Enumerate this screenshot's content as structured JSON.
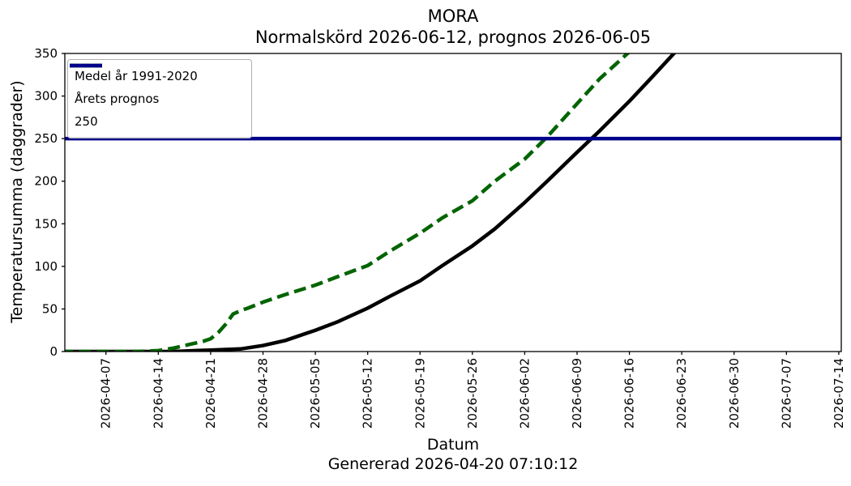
{
  "chart_data": {
    "type": "line",
    "title_lines": [
      "MORA",
      "Normalskörd 2026-06-12, prognos 2026-06-05"
    ],
    "xlabel": "Datum",
    "ylabel": "Temperatursumma (daggrader)",
    "footnote": "Genererad 2026-04-20 07:10:12",
    "ylim": [
      0,
      350
    ],
    "yticks": [
      0,
      50,
      100,
      150,
      200,
      250,
      300,
      350
    ],
    "xlim": [
      "2026-04-01T12:00:00Z",
      "2026-07-14T08:00:00Z"
    ],
    "xticks": [
      "2026-04-07",
      "2026-04-14",
      "2026-04-21",
      "2026-04-28",
      "2026-05-05",
      "2026-05-12",
      "2026-05-19",
      "2026-05-26",
      "2026-06-02",
      "2026-06-09",
      "2026-06-16",
      "2026-06-23",
      "2026-06-30",
      "2026-07-07",
      "2026-07-14"
    ],
    "grid": false,
    "legend_position": "upper-left",
    "axis_color": "#000000",
    "series": [
      {
        "name": "Medel år 1991-2020",
        "color": "#000000",
        "style": "solid",
        "points": [
          [
            "2026-04-01",
            0
          ],
          [
            "2026-04-10",
            0
          ],
          [
            "2026-04-16",
            0
          ],
          [
            "2026-04-19",
            1
          ],
          [
            "2026-04-22",
            2
          ],
          [
            "2026-04-25",
            3
          ],
          [
            "2026-04-28",
            7
          ],
          [
            "2026-05-01",
            13
          ],
          [
            "2026-05-05",
            25
          ],
          [
            "2026-05-08",
            35
          ],
          [
            "2026-05-12",
            51
          ],
          [
            "2026-05-15",
            65
          ],
          [
            "2026-05-19",
            83
          ],
          [
            "2026-05-22",
            101
          ],
          [
            "2026-05-26",
            124
          ],
          [
            "2026-05-29",
            144
          ],
          [
            "2026-06-02",
            175
          ],
          [
            "2026-06-05",
            200
          ],
          [
            "2026-06-09",
            234
          ],
          [
            "2026-06-12",
            259
          ],
          [
            "2026-06-16",
            294
          ],
          [
            "2026-06-19",
            322
          ],
          [
            "2026-06-23",
            360
          ]
        ]
      },
      {
        "name": "Årets prognos",
        "color": "#006400",
        "style": "dashed",
        "points": [
          [
            "2026-04-01",
            0
          ],
          [
            "2026-04-11",
            0
          ],
          [
            "2026-04-14",
            1
          ],
          [
            "2026-04-16",
            4
          ],
          [
            "2026-04-18",
            8
          ],
          [
            "2026-04-20",
            12
          ],
          [
            "2026-04-21",
            15
          ],
          [
            "2026-04-22",
            22
          ],
          [
            "2026-04-23",
            32
          ],
          [
            "2026-04-24",
            44
          ],
          [
            "2026-04-25",
            48
          ],
          [
            "2026-04-26",
            51
          ],
          [
            "2026-04-28",
            58
          ],
          [
            "2026-05-01",
            67
          ],
          [
            "2026-05-05",
            78
          ],
          [
            "2026-05-08",
            88
          ],
          [
            "2026-05-12",
            101
          ],
          [
            "2026-05-15",
            118
          ],
          [
            "2026-05-19",
            139
          ],
          [
            "2026-05-22",
            157
          ],
          [
            "2026-05-26",
            177
          ],
          [
            "2026-05-29",
            200
          ],
          [
            "2026-06-02",
            226
          ],
          [
            "2026-06-05",
            252
          ],
          [
            "2026-06-09",
            291
          ],
          [
            "2026-06-12",
            320
          ],
          [
            "2026-06-16",
            352
          ]
        ]
      },
      {
        "name": "250",
        "color": "#00008B",
        "style": "hline",
        "y": 250
      }
    ]
  }
}
